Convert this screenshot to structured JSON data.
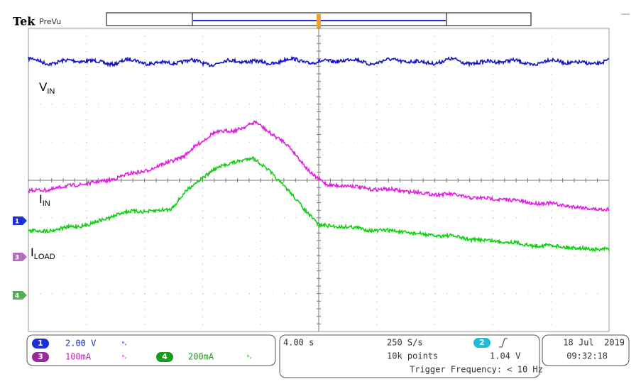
{
  "header": {
    "brand": "Tek",
    "mode": "PreVu"
  },
  "trace_labels": [
    {
      "main": "V",
      "sub": "IN"
    },
    {
      "main": "I",
      "sub": "IN"
    },
    {
      "main": "I",
      "sub": "LOAD"
    }
  ],
  "channel_markers": [
    "1",
    "3",
    "4"
  ],
  "channels": [
    {
      "number": "1",
      "scale": "2.00 V"
    },
    {
      "number": "3",
      "scale": "100mA"
    },
    {
      "number": "4",
      "scale": "200mA"
    }
  ],
  "timebase": {
    "scale": "4.00 s",
    "sample_rate": "250 S/s",
    "record": "10k points"
  },
  "trigger": {
    "channel": "2",
    "level": "1.04 V",
    "frequency": "Trigger Frequency: < 10 Hz"
  },
  "datetime": {
    "date": "18 Jul  2019",
    "time": "09:32:18"
  }
}
